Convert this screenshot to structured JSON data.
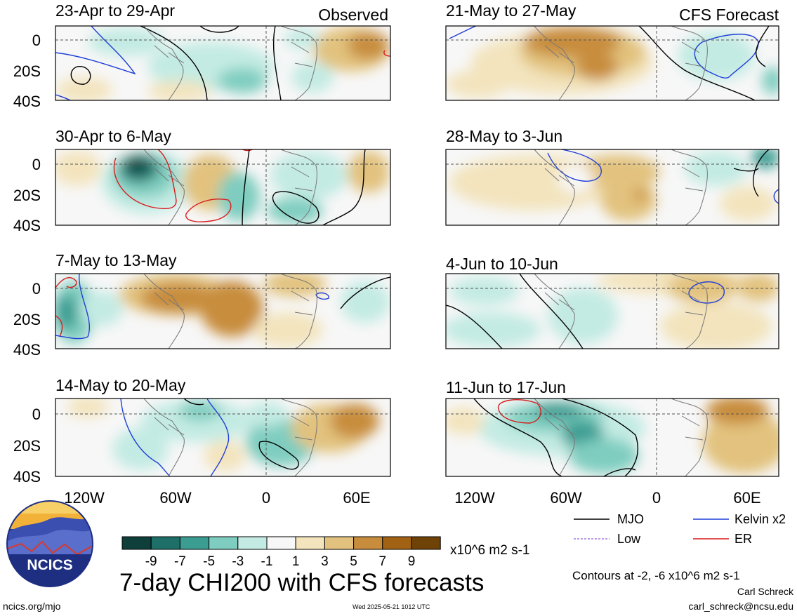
{
  "panels": [
    {
      "period": "23-Apr to 29-Apr",
      "tag": "Observed"
    },
    {
      "period": "30-Apr to 6-May",
      "tag": ""
    },
    {
      "period": "7-May to 13-May",
      "tag": ""
    },
    {
      "period": "14-May to 20-May",
      "tag": ""
    },
    {
      "period": "21-May to 27-May",
      "tag": "CFS Forecast"
    },
    {
      "period": "28-May to 3-Jun",
      "tag": ""
    },
    {
      "period": "4-Jun to 10-Jun",
      "tag": ""
    },
    {
      "period": "11-Jun to 17-Jun",
      "tag": ""
    }
  ],
  "lat_labels": [
    "0",
    "20S",
    "40S"
  ],
  "lon_labels": [
    "120W",
    "60W",
    "0",
    "60E"
  ],
  "legend": [
    {
      "label": "MJO",
      "color": "#000000",
      "style": "solid"
    },
    {
      "label": "Kelvin x2",
      "color": "#1f3fd8",
      "style": "solid"
    },
    {
      "label": "Low",
      "color": "#a07ae0",
      "style": "dashed"
    },
    {
      "label": "ER",
      "color": "#d81b1b",
      "style": "solid"
    }
  ],
  "colorbar": {
    "colors": [
      "#0f3f3a",
      "#1d6f68",
      "#3b9c92",
      "#7fcdc0",
      "#c3ebe3",
      "#f7f7f7",
      "#f3e4bd",
      "#e2c27e",
      "#c88d3c",
      "#a26214",
      "#6f4208"
    ],
    "ticks": [
      "-9",
      "-7",
      "-5",
      "-3",
      "-1",
      "1",
      "3",
      "5",
      "7",
      "9"
    ],
    "unit": "x10^6 m2 s-1"
  },
  "title": "7-day CHI200 with CFS forecasts",
  "contour_note": "Contours at -2, -6 x10^6 m2 s-1",
  "author": "Carl Schreck",
  "email": "carl_schreck@ncsu.edu",
  "url": "ncics.org/mjo",
  "timestamp": "Wed 2025-05-21 1012 UTC",
  "logo_text": "NCICS"
}
